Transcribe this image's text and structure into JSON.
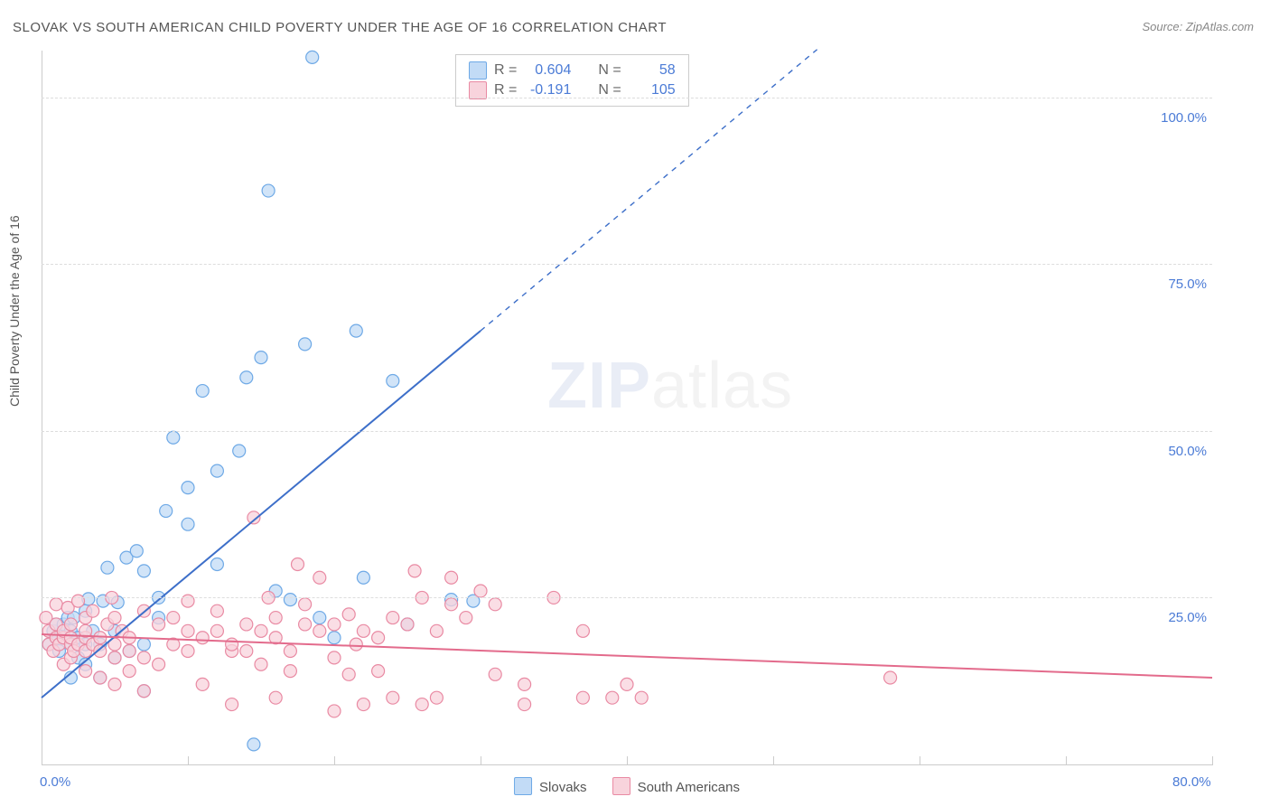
{
  "title": "SLOVAK VS SOUTH AMERICAN CHILD POVERTY UNDER THE AGE OF 16 CORRELATION CHART",
  "source": "Source: ZipAtlas.com",
  "ylabel": "Child Poverty Under the Age of 16",
  "watermark": {
    "zip": "ZIP",
    "atlas": "atlas"
  },
  "chart": {
    "type": "scatter-correlation",
    "background_color": "#ffffff",
    "grid_color": "#dddddd",
    "axis_color": "#cccccc",
    "tick_label_color": "#4b7bd6",
    "tick_fontsize": 15,
    "xlim": [
      0,
      80
    ],
    "ylim": [
      0,
      107
    ],
    "xtick_positions": [
      0,
      10,
      20,
      30,
      40,
      50,
      60,
      70,
      80
    ],
    "xtick_labels": {
      "0": "0.0%",
      "80": "80.0%"
    },
    "ytick_positions": [
      25,
      50,
      75,
      100
    ],
    "ytick_labels": {
      "25": "25.0%",
      "50": "50.0%",
      "75": "75.0%",
      "100": "100.0%"
    },
    "marker_radius": 7,
    "marker_stroke_width": 1.2,
    "line_width": 2,
    "series": [
      {
        "name": "Slovaks",
        "fill_color": "#c2dbf6",
        "stroke_color": "#6ea9e6",
        "line_color": "#3d6fc9",
        "R": "0.604",
        "N": "58",
        "regression": {
          "x1": 0,
          "y1": 10,
          "x2": 30,
          "y2": 65,
          "extend_to_x": 53
        },
        "points": [
          [
            0.5,
            18
          ],
          [
            0.8,
            20
          ],
          [
            1,
            19
          ],
          [
            1,
            21
          ],
          [
            1.2,
            17
          ],
          [
            1.5,
            19
          ],
          [
            1.5,
            21
          ],
          [
            1.8,
            22
          ],
          [
            2,
            13
          ],
          [
            2,
            18
          ],
          [
            2,
            20
          ],
          [
            2.2,
            22
          ],
          [
            2.5,
            16
          ],
          [
            2.5,
            19
          ],
          [
            3,
            15
          ],
          [
            3,
            18
          ],
          [
            3,
            23
          ],
          [
            3.2,
            24.8
          ],
          [
            3.5,
            20
          ],
          [
            4,
            13
          ],
          [
            4,
            18
          ],
          [
            4.2,
            24.5
          ],
          [
            4.5,
            29.5
          ],
          [
            5,
            16
          ],
          [
            5,
            20
          ],
          [
            5.2,
            24.3
          ],
          [
            5.8,
            31
          ],
          [
            6,
            17
          ],
          [
            6.5,
            32
          ],
          [
            7,
            11
          ],
          [
            7,
            18
          ],
          [
            7,
            29
          ],
          [
            8,
            22
          ],
          [
            8,
            25
          ],
          [
            8.5,
            38
          ],
          [
            9,
            49
          ],
          [
            10,
            36
          ],
          [
            10,
            41.5
          ],
          [
            11,
            56
          ],
          [
            12,
            30
          ],
          [
            12,
            44
          ],
          [
            13.5,
            47
          ],
          [
            14,
            58
          ],
          [
            14.5,
            3
          ],
          [
            15,
            61
          ],
          [
            15.5,
            86
          ],
          [
            16,
            26
          ],
          [
            17,
            24.7
          ],
          [
            18,
            63
          ],
          [
            18.5,
            106
          ],
          [
            19,
            22
          ],
          [
            20,
            19
          ],
          [
            21.5,
            65
          ],
          [
            22,
            28
          ],
          [
            24,
            57.5
          ],
          [
            25,
            21
          ],
          [
            28,
            24.7
          ],
          [
            29.5,
            24.5
          ]
        ]
      },
      {
        "name": "South Americans",
        "fill_color": "#f8d3dc",
        "stroke_color": "#e98aa3",
        "line_color": "#e36b8c",
        "R": "-0.191",
        "N": "105",
        "regression": {
          "x1": 0,
          "y1": 19.5,
          "x2": 80,
          "y2": 13
        },
        "points": [
          [
            0.3,
            22
          ],
          [
            0.5,
            18
          ],
          [
            0.5,
            20
          ],
          [
            0.8,
            17
          ],
          [
            1,
            19
          ],
          [
            1,
            21
          ],
          [
            1,
            24
          ],
          [
            1.2,
            18
          ],
          [
            1.5,
            15
          ],
          [
            1.5,
            19
          ],
          [
            1.5,
            20
          ],
          [
            1.8,
            23.5
          ],
          [
            2,
            16
          ],
          [
            2,
            18
          ],
          [
            2,
            19
          ],
          [
            2,
            21
          ],
          [
            2.2,
            17
          ],
          [
            2.5,
            18
          ],
          [
            2.5,
            24.5
          ],
          [
            3,
            14
          ],
          [
            3,
            17
          ],
          [
            3,
            19
          ],
          [
            3,
            20
          ],
          [
            3,
            22
          ],
          [
            3.5,
            18
          ],
          [
            3.5,
            23
          ],
          [
            4,
            13
          ],
          [
            4,
            17
          ],
          [
            4,
            19
          ],
          [
            4.5,
            21
          ],
          [
            4.8,
            25
          ],
          [
            5,
            12
          ],
          [
            5,
            16
          ],
          [
            5,
            18
          ],
          [
            5,
            22
          ],
          [
            5.5,
            20
          ],
          [
            6,
            14
          ],
          [
            6,
            17
          ],
          [
            6,
            19
          ],
          [
            7,
            11
          ],
          [
            7,
            16
          ],
          [
            7,
            23
          ],
          [
            8,
            15
          ],
          [
            8,
            21
          ],
          [
            9,
            18
          ],
          [
            9,
            22
          ],
          [
            10,
            17
          ],
          [
            10,
            20
          ],
          [
            10,
            24.5
          ],
          [
            11,
            12
          ],
          [
            11,
            19
          ],
          [
            12,
            20
          ],
          [
            12,
            23
          ],
          [
            13,
            9
          ],
          [
            13,
            17
          ],
          [
            13,
            18
          ],
          [
            14,
            21
          ],
          [
            14,
            17
          ],
          [
            14.5,
            37
          ],
          [
            15,
            15
          ],
          [
            15,
            20
          ],
          [
            15.5,
            25
          ],
          [
            16,
            10
          ],
          [
            16,
            19
          ],
          [
            16,
            22
          ],
          [
            17,
            17
          ],
          [
            17,
            14
          ],
          [
            17.5,
            30
          ],
          [
            18,
            21
          ],
          [
            18,
            24
          ],
          [
            19,
            20
          ],
          [
            19,
            28
          ],
          [
            20,
            8
          ],
          [
            20,
            16
          ],
          [
            20,
            21
          ],
          [
            21,
            13.5
          ],
          [
            21,
            22.5
          ],
          [
            21.5,
            18
          ],
          [
            22,
            9
          ],
          [
            22,
            20
          ],
          [
            23,
            19
          ],
          [
            23,
            14
          ],
          [
            24,
            10
          ],
          [
            24,
            22
          ],
          [
            25,
            21
          ],
          [
            25.5,
            29
          ],
          [
            26,
            9
          ],
          [
            26,
            25
          ],
          [
            27,
            10
          ],
          [
            27,
            20
          ],
          [
            28,
            24
          ],
          [
            28,
            28
          ],
          [
            29,
            22
          ],
          [
            30,
            26
          ],
          [
            31,
            13.5
          ],
          [
            31,
            24
          ],
          [
            33,
            9
          ],
          [
            33,
            12
          ],
          [
            35,
            25
          ],
          [
            37,
            10
          ],
          [
            37,
            20
          ],
          [
            39,
            10
          ],
          [
            40,
            12
          ],
          [
            41,
            10
          ],
          [
            58,
            13
          ]
        ]
      }
    ],
    "legend_top": {
      "R_label": "R =",
      "N_label": "N ="
    },
    "legend_bottom_labels": [
      "Slovaks",
      "South Americans"
    ]
  }
}
